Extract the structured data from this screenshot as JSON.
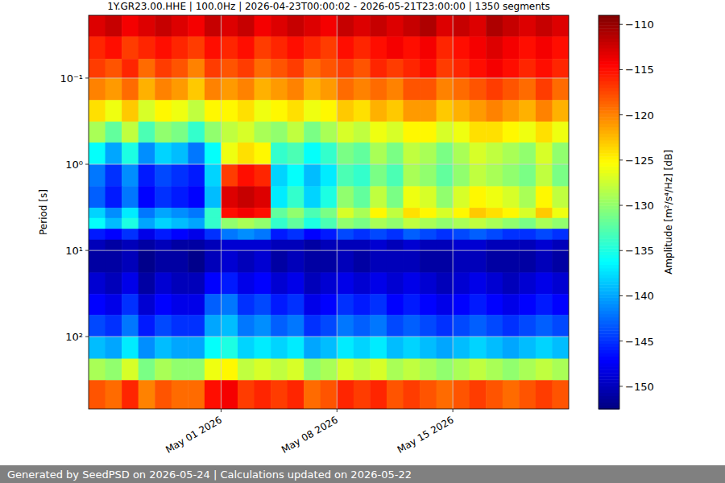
{
  "chart_data": {
    "type": "heatmap",
    "title": "1Y.GR23.00.HHE | 100.0Hz | 2026-04-23T00:00:02 - 2026-05-21T23:00:00 | 1350 segments",
    "y_label": "Period [s]",
    "log": "y",
    "grid": true,
    "xlim": [
      "2026-04-23",
      "2026-05-22"
    ],
    "xticks": [
      {
        "value": "2026-05-01",
        "label": "May 01 2026"
      },
      {
        "value": "2026-05-08",
        "label": "May 08 2026"
      },
      {
        "value": "2026-05-15",
        "label": "May 15 2026"
      }
    ],
    "ylim": [
      0.0187,
      690
    ],
    "yticks": [
      {
        "value": 0.1,
        "label": "10⁻¹"
      },
      {
        "value": 1,
        "label": "10⁰"
      },
      {
        "value": 10,
        "label": "10¹"
      },
      {
        "value": 100,
        "label": "10²"
      }
    ],
    "x_bins": [
      "2026-04-23",
      "2026-04-24",
      "2026-04-25",
      "2026-04-26",
      "2026-04-27",
      "2026-04-28",
      "2026-04-29",
      "2026-04-30",
      "2026-05-01",
      "2026-05-02",
      "2026-05-03",
      "2026-05-04",
      "2026-05-05",
      "2026-05-06",
      "2026-05-07",
      "2026-05-08",
      "2026-05-09",
      "2026-05-10",
      "2026-05-11",
      "2026-05-12",
      "2026-05-13",
      "2026-05-14",
      "2026-05-15",
      "2026-05-16",
      "2026-05-17",
      "2026-05-18",
      "2026-05-19",
      "2026-05-20",
      "2026-05-21",
      "2026-05-22"
    ],
    "y_bins": [
      0.0187,
      0.033,
      0.06,
      0.1,
      0.18,
      0.32,
      0.56,
      1,
      1.8,
      3.2,
      4.2,
      5.6,
      7.5,
      10,
      18,
      32,
      56,
      100,
      180,
      320,
      690
    ],
    "cells": [
      [
        -113,
        -112,
        -114,
        -113,
        -112,
        -113,
        -114,
        -112,
        -113,
        -112,
        -114,
        -113,
        -112,
        -113,
        -114,
        -112,
        -113,
        -112,
        -113,
        -112,
        -111,
        -113,
        -112,
        -113,
        -111,
        -112,
        -113,
        -112,
        -113
      ],
      [
        -116,
        -115,
        -117,
        -116,
        -115,
        -116,
        -117,
        -115,
        -116,
        -115,
        -117,
        -116,
        -115,
        -116,
        -117,
        -115,
        -116,
        -115,
        -114,
        -115,
        -114,
        -116,
        -115,
        -114,
        -113,
        -114,
        -115,
        -114,
        -115
      ],
      [
        -117,
        -118,
        -116,
        -119,
        -117,
        -118,
        -120,
        -117,
        -118,
        -117,
        -119,
        -118,
        -117,
        -119,
        -118,
        -117,
        -118,
        -116,
        -117,
        -116,
        -115,
        -117,
        -116,
        -115,
        -114,
        -115,
        -116,
        -115,
        -116
      ],
      [
        -120,
        -121,
        -119,
        -122,
        -120,
        -121,
        -123,
        -120,
        -121,
        -120,
        -122,
        -121,
        -120,
        -122,
        -121,
        -119,
        -120,
        -119,
        -120,
        -118,
        -118,
        -120,
        -119,
        -118,
        -117,
        -118,
        -119,
        -117,
        -119
      ],
      [
        -124,
        -126,
        -123,
        -127,
        -125,
        -126,
        -128,
        -125,
        -125,
        -124,
        -126,
        -125,
        -124,
        -126,
        -125,
        -123,
        -124,
        -122,
        -123,
        -121,
        -121,
        -123,
        -122,
        -121,
        -120,
        -121,
        -122,
        -120,
        -122
      ],
      [
        -129,
        -132,
        -128,
        -133,
        -130,
        -131,
        -134,
        -130,
        -128,
        -127,
        -129,
        -130,
        -128,
        -131,
        -129,
        -127,
        -128,
        -126,
        -127,
        -125,
        -125,
        -127,
        -126,
        -124,
        -124,
        -125,
        -126,
        -124,
        -126
      ],
      [
        -136,
        -140,
        -135,
        -141,
        -138,
        -139,
        -142,
        -136,
        -126,
        -124,
        -125,
        -134,
        -133,
        -136,
        -134,
        -131,
        -132,
        -129,
        -131,
        -128,
        -129,
        -131,
        -129,
        -127,
        -128,
        -129,
        -130,
        -127,
        -130
      ],
      [
        -142,
        -145,
        -141,
        -146,
        -144,
        -145,
        -146,
        -138,
        -117,
        -115,
        -116,
        -138,
        -136,
        -139,
        -137,
        -133,
        -134,
        -131,
        -133,
        -129,
        -130,
        -132,
        -130,
        -128,
        -129,
        -130,
        -131,
        -128,
        -131
      ],
      [
        -143,
        -146,
        -142,
        -147,
        -145,
        -146,
        -147,
        -139,
        -113,
        -112,
        -113,
        -137,
        -134,
        -138,
        -135,
        -130,
        -132,
        -128,
        -131,
        -126,
        -127,
        -130,
        -127,
        -125,
        -126,
        -127,
        -129,
        -125,
        -128
      ],
      [
        -138,
        -141,
        -137,
        -142,
        -140,
        -141,
        -142,
        -134,
        -115,
        -114,
        -115,
        -132,
        -130,
        -133,
        -131,
        -127,
        -129,
        -125,
        -128,
        -124,
        -125,
        -127,
        -125,
        -123,
        -124,
        -125,
        -127,
        -123,
        -126
      ],
      [
        -136,
        -139,
        -135,
        -140,
        -138,
        -139,
        -140,
        -134,
        -130,
        -129,
        -130,
        -134,
        -132,
        -135,
        -133,
        -130,
        -131,
        -129,
        -130,
        -128,
        -129,
        -130,
        -129,
        -128,
        -129,
        -130,
        -131,
        -129,
        -130
      ],
      [
        -146,
        -147,
        -145,
        -148,
        -146,
        -147,
        -148,
        -145,
        -142,
        -141,
        -142,
        -146,
        -145,
        -147,
        -146,
        -144,
        -145,
        -144,
        -145,
        -143,
        -144,
        -145,
        -144,
        -143,
        -144,
        -145,
        -145,
        -144,
        -145
      ],
      [
        -150,
        -151,
        -150,
        -151,
        -150,
        -151,
        -151,
        -150,
        -149,
        -149,
        -149,
        -150,
        -150,
        -151,
        -150,
        -150,
        -150,
        -149,
        -150,
        -149,
        -150,
        -150,
        -149,
        -149,
        -150,
        -150,
        -150,
        -149,
        -150
      ],
      [
        -151,
        -151,
        -150,
        -152,
        -151,
        -151,
        -152,
        -150,
        -149,
        -150,
        -149,
        -151,
        -150,
        -151,
        -151,
        -150,
        -151,
        -150,
        -150,
        -150,
        -151,
        -151,
        -150,
        -150,
        -151,
        -151,
        -151,
        -150,
        -151
      ],
      [
        -149,
        -150,
        -148,
        -151,
        -149,
        -150,
        -150,
        -147,
        -146,
        -148,
        -147,
        -149,
        -148,
        -150,
        -149,
        -148,
        -149,
        -148,
        -149,
        -148,
        -149,
        -150,
        -149,
        -148,
        -149,
        -150,
        -149,
        -148,
        -149
      ],
      [
        -147,
        -148,
        -145,
        -149,
        -147,
        -148,
        -148,
        -143,
        -142,
        -145,
        -144,
        -146,
        -145,
        -148,
        -147,
        -145,
        -146,
        -145,
        -147,
        -146,
        -147,
        -148,
        -147,
        -146,
        -147,
        -148,
        -147,
        -146,
        -147
      ],
      [
        -144,
        -145,
        -142,
        -146,
        -144,
        -145,
        -145,
        -140,
        -139,
        -142,
        -141,
        -143,
        -142,
        -145,
        -144,
        -142,
        -143,
        -142,
        -144,
        -143,
        -144,
        -145,
        -144,
        -143,
        -144,
        -145,
        -144,
        -143,
        -144
      ],
      [
        -139,
        -140,
        -137,
        -141,
        -139,
        -140,
        -140,
        -136,
        -135,
        -138,
        -137,
        -138,
        -137,
        -140,
        -139,
        -137,
        -138,
        -137,
        -139,
        -138,
        -139,
        -140,
        -139,
        -138,
        -139,
        -140,
        -139,
        -138,
        -139
      ],
      [
        -129,
        -130,
        -127,
        -131,
        -129,
        -130,
        -130,
        -126,
        -125,
        -128,
        -127,
        -128,
        -127,
        -130,
        -129,
        -127,
        -128,
        -127,
        -129,
        -128,
        -129,
        -130,
        -129,
        -128,
        -129,
        -130,
        -129,
        -128,
        -129
      ],
      [
        -118,
        -119,
        -116,
        -120,
        -118,
        -119,
        -119,
        -115,
        -114,
        -117,
        -116,
        -117,
        -116,
        -119,
        -118,
        -116,
        -117,
        -116,
        -118,
        -117,
        -118,
        -119,
        -118,
        -117,
        -118,
        -119,
        -118,
        -117,
        -118
      ]
    ],
    "colorbar": {
      "label": "Amplitude [m²/s⁴/Hz] [dB]",
      "range": [
        -152.5,
        -109
      ],
      "ticks": [
        {
          "value": -110,
          "label": "−110"
        },
        {
          "value": -115,
          "label": "−115"
        },
        {
          "value": -120,
          "label": "−120"
        },
        {
          "value": -125,
          "label": "−125"
        },
        {
          "value": -130,
          "label": "−130"
        },
        {
          "value": -135,
          "label": "−135"
        },
        {
          "value": -140,
          "label": "−140"
        },
        {
          "value": -145,
          "label": "−145"
        },
        {
          "value": -150,
          "label": "−150"
        }
      ]
    }
  },
  "footer": "Generated by SeedPSD on 2026-05-24 | Calculations updated on 2026-05-22"
}
